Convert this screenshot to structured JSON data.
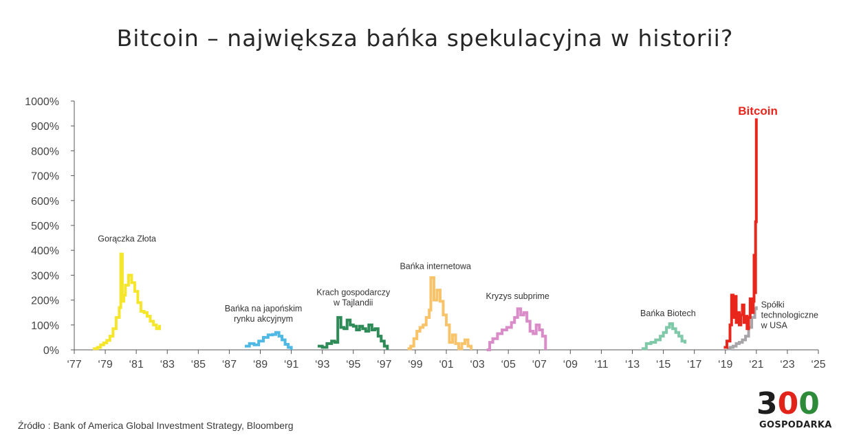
{
  "title": "Bitcoin – największa bańka spekulacyjna w historii?",
  "source": "Źródło : Bank of America Global Investment Strategy, Bloomberg",
  "logo": {
    "number": "300",
    "name": "GOSPODARKA"
  },
  "chart_data": {
    "type": "line",
    "title": "Bitcoin – największa bańka spekulacyjna w historii?",
    "xlabel": "",
    "ylabel": "",
    "xlim": [
      1977,
      2025
    ],
    "ylim": [
      0,
      1000
    ],
    "grid": false,
    "y_ticks": [
      {
        "v": 0,
        "label": "0%"
      },
      {
        "v": 100,
        "label": "100%"
      },
      {
        "v": 200,
        "label": "200%"
      },
      {
        "v": 300,
        "label": "300%"
      },
      {
        "v": 400,
        "label": "400%"
      },
      {
        "v": 500,
        "label": "500%"
      },
      {
        "v": 600,
        "label": "600%"
      },
      {
        "v": 700,
        "label": "700%"
      },
      {
        "v": 800,
        "label": "800%"
      },
      {
        "v": 900,
        "label": "900%"
      },
      {
        "v": 1000,
        "label": "1000%"
      }
    ],
    "x_ticks": [
      {
        "v": 1977,
        "label": "‘77"
      },
      {
        "v": 1979,
        "label": "‘79"
      },
      {
        "v": 1981,
        "label": "‘81"
      },
      {
        "v": 1983,
        "label": "‘83"
      },
      {
        "v": 1985,
        "label": "‘85"
      },
      {
        "v": 1987,
        "label": "‘87"
      },
      {
        "v": 1989,
        "label": "‘89"
      },
      {
        "v": 1991,
        "label": "‘91"
      },
      {
        "v": 1993,
        "label": "‘93"
      },
      {
        "v": 1995,
        "label": "‘95"
      },
      {
        "v": 1997,
        "label": "‘97"
      },
      {
        "v": 1999,
        "label": "‘99"
      },
      {
        "v": 2001,
        "label": "‘01"
      },
      {
        "v": 2003,
        "label": "‘03"
      },
      {
        "v": 2005,
        "label": "‘05"
      },
      {
        "v": 2007,
        "label": "‘07"
      },
      {
        "v": 2009,
        "label": "‘09"
      },
      {
        "v": 2011,
        "label": "‘11"
      },
      {
        "v": 2013,
        "label": "‘13"
      },
      {
        "v": 2015,
        "label": "‘15"
      },
      {
        "v": 2017,
        "label": "‘17"
      },
      {
        "v": 2019,
        "label": "‘19"
      },
      {
        "v": 2021,
        "label": "‘21"
      },
      {
        "v": 2023,
        "label": "‘23"
      },
      {
        "v": 2025,
        "label": "‘25"
      }
    ],
    "series": [
      {
        "name": "Gorączka Złota",
        "color": "#f5e62c",
        "label_lines": [
          "Gorączka Złota"
        ],
        "label_at": {
          "x": 1980.4,
          "y": 435
        },
        "x": [
          1978.2,
          1978.5,
          1978.7,
          1978.9,
          1979.1,
          1979.3,
          1979.5,
          1979.7,
          1979.9,
          1980.0,
          1980.1,
          1980.2,
          1980.3,
          1980.5,
          1980.7,
          1980.9,
          1981.1,
          1981.3,
          1981.5,
          1981.7,
          1981.9,
          1982.1,
          1982.3,
          1982.5
        ],
        "y": [
          5,
          10,
          20,
          28,
          38,
          55,
          85,
          130,
          170,
          385,
          195,
          220,
          260,
          300,
          270,
          235,
          190,
          155,
          150,
          135,
          115,
          100,
          85,
          100
        ]
      },
      {
        "name": "Bańka na japońskim rynku akcyjnym",
        "color": "#4fb8e3",
        "label_lines": [
          "Bańka na japońskim",
          "rynku akcyjnym"
        ],
        "label_at": {
          "x": 1989.2,
          "y": 155
        },
        "x": [
          1988.0,
          1988.3,
          1988.6,
          1988.9,
          1989.2,
          1989.5,
          1989.8,
          1990.0,
          1990.2,
          1990.4,
          1990.6,
          1990.8,
          1991.0
        ],
        "y": [
          15,
          25,
          20,
          35,
          50,
          60,
          62,
          70,
          55,
          40,
          22,
          10,
          0
        ]
      },
      {
        "name": "Krach gospodarczy w Tajlandii",
        "color": "#2e8b57",
        "label_lines": [
          "Krach gospodarczy",
          "w Tajlandii"
        ],
        "label_at": {
          "x": 1995.0,
          "y": 220
        },
        "x": [
          1992.7,
          1993.0,
          1993.3,
          1993.6,
          1993.8,
          1994.0,
          1994.2,
          1994.4,
          1994.6,
          1994.8,
          1995.0,
          1995.2,
          1995.4,
          1995.6,
          1995.8,
          1996.0,
          1996.2,
          1996.4,
          1996.6,
          1996.8,
          1997.0,
          1997.2
        ],
        "y": [
          15,
          10,
          25,
          35,
          30,
          130,
          90,
          85,
          120,
          100,
          95,
          80,
          95,
          85,
          75,
          100,
          80,
          85,
          55,
          35,
          15,
          0
        ]
      },
      {
        "name": "Bańka internetowa",
        "color": "#f9c36a",
        "label_lines": [
          "Bańka internetowa"
        ],
        "label_at": {
          "x": 2000.3,
          "y": 325
        },
        "x": [
          1998.5,
          1998.7,
          1998.9,
          1999.1,
          1999.3,
          1999.5,
          1999.7,
          1999.9,
          2000.0,
          2000.2,
          2000.4,
          2000.6,
          2000.8,
          2001.0,
          2001.2,
          2001.4,
          2001.6,
          2001.8,
          2002.0,
          2002.2,
          2002.4,
          2002.6
        ],
        "y": [
          5,
          15,
          45,
          75,
          90,
          100,
          130,
          160,
          290,
          200,
          240,
          195,
          140,
          100,
          30,
          60,
          25,
          5,
          25,
          40,
          15,
          0
        ]
      },
      {
        "name": "Kryzys subprime",
        "color": "#d98cc8",
        "label_lines": [
          "Kryzys subprime"
        ],
        "label_at": {
          "x": 2005.6,
          "y": 205
        },
        "x": [
          2003.6,
          2003.8,
          2004.0,
          2004.3,
          2004.6,
          2004.9,
          2005.2,
          2005.4,
          2005.6,
          2005.8,
          2006.0,
          2006.2,
          2006.4,
          2006.6,
          2006.8,
          2007.0,
          2007.2,
          2007.4
        ],
        "y": [
          0,
          30,
          45,
          65,
          80,
          90,
          110,
          130,
          165,
          140,
          150,
          115,
          75,
          65,
          100,
          80,
          55,
          0
        ]
      },
      {
        "name": "Bańka Biotech",
        "color": "#7fc9a8",
        "label_lines": [
          "Bańka Biotech"
        ],
        "label_at": {
          "x": 2015.3,
          "y": 135
        },
        "x": [
          2013.6,
          2013.9,
          2014.2,
          2014.5,
          2014.8,
          2015.0,
          2015.2,
          2015.4,
          2015.6,
          2015.8,
          2016.0,
          2016.2,
          2016.4
        ],
        "y": [
          5,
          25,
          30,
          40,
          55,
          70,
          90,
          105,
          85,
          70,
          55,
          35,
          25
        ]
      },
      {
        "name": "Spółki technologiczne w USA",
        "color": "#a8a5a8",
        "label_lines": [
          "Spółki",
          "technologiczne",
          "w USA"
        ],
        "label_at": {
          "x": 2021.3,
          "y": 170
        },
        "x": [
          2019.1,
          2019.3,
          2019.5,
          2019.7,
          2019.9,
          2020.1,
          2020.3,
          2020.5,
          2020.7,
          2020.9,
          2021.0
        ],
        "y": [
          5,
          10,
          15,
          25,
          30,
          40,
          55,
          90,
          130,
          165,
          175
        ]
      },
      {
        "name": "Bitcoin",
        "color": "#e8261c",
        "label_lines": [
          "Bitcoin"
        ],
        "label_at": {
          "x": 2021.1,
          "y": 945
        },
        "x": [
          2018.9,
          2019.1,
          2019.3,
          2019.4,
          2019.5,
          2019.6,
          2019.7,
          2019.8,
          2019.9,
          2020.0,
          2020.1,
          2020.2,
          2020.3,
          2020.4,
          2020.5,
          2020.6,
          2020.7,
          2020.8,
          2020.85,
          2020.9,
          2020.95,
          2021.0
        ],
        "y": [
          10,
          35,
          100,
          220,
          130,
          215,
          110,
          150,
          100,
          140,
          180,
          110,
          135,
          85,
          130,
          205,
          150,
          195,
          380,
          230,
          515,
          930
        ]
      }
    ]
  }
}
